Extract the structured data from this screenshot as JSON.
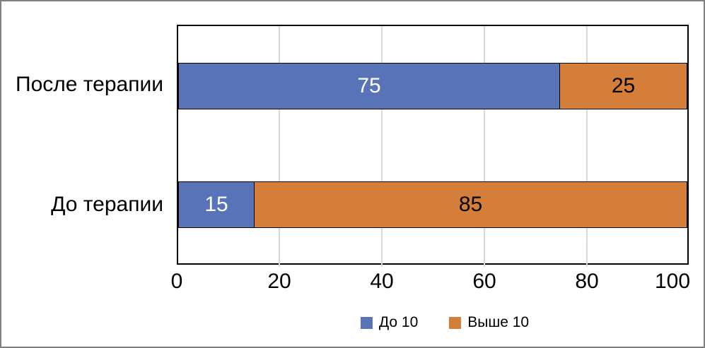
{
  "chart_data": {
    "type": "bar",
    "orientation": "horizontal",
    "stacked": true,
    "categories": [
      "После терапии",
      "До терапии"
    ],
    "series": [
      {
        "name": "До 10",
        "color": "#5873b7",
        "values": [
          75,
          15
        ]
      },
      {
        "name": "Выше 10",
        "color": "#d57e3a",
        "values": [
          25,
          85
        ]
      }
    ],
    "title": "",
    "xlabel": "",
    "ylabel": "",
    "xlim": [
      0,
      100
    ],
    "x_ticks": [
      0,
      20,
      40,
      60,
      80,
      100
    ],
    "grid": "vertical-major",
    "gridline_color": "#d9d9d9",
    "plot_border_color": "#000000",
    "legend_position": "bottom",
    "data_label_color_on_series1": "#ffffff",
    "data_label_color_on_series2": "#000000"
  },
  "rows": [
    {
      "category": "После терапии",
      "seg1": "75",
      "seg2": "25"
    },
    {
      "category": "До терапии",
      "seg1": "15",
      "seg2": "85"
    }
  ],
  "axis": {
    "tick_labels": [
      "0",
      "20",
      "40",
      "60",
      "80",
      "100"
    ]
  },
  "legend": {
    "items": [
      {
        "label": "До 10"
      },
      {
        "label": "Выше 10"
      }
    ]
  },
  "frame": {
    "border_color": "#808080"
  }
}
